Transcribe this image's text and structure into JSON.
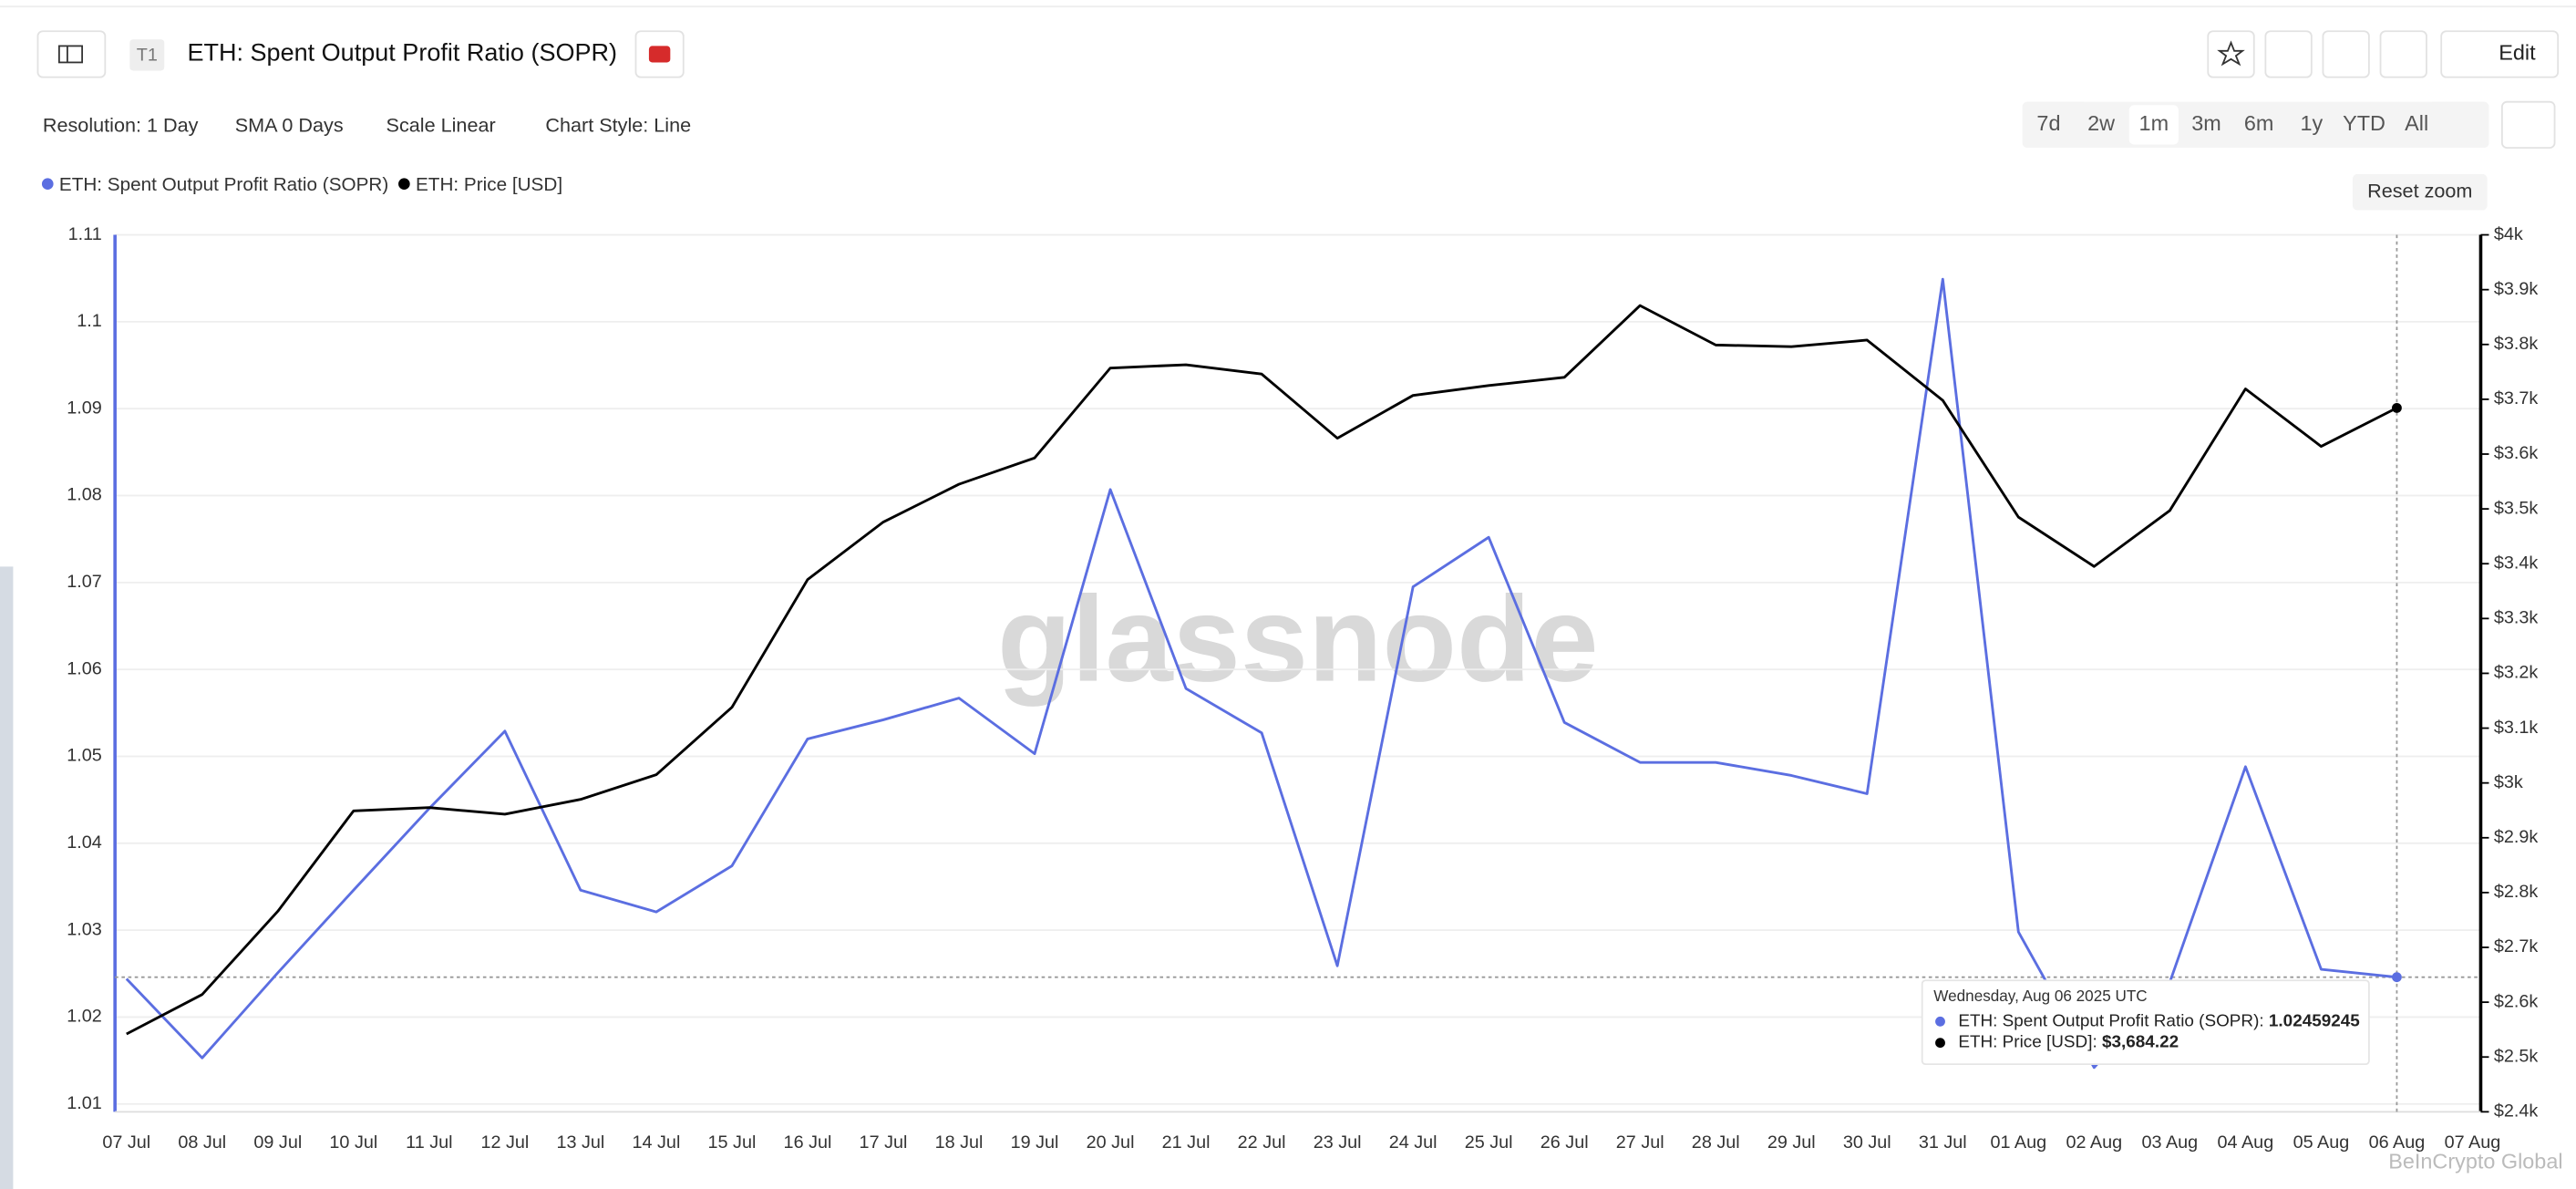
{
  "header": {
    "badge": "T1",
    "title": "ETH: Spent Output Profit Ratio (SOPR)",
    "edit": "Edit"
  },
  "toolbar": {
    "resolution": "Resolution: 1 Day",
    "sma": "SMA 0 Days",
    "scale": "Scale Linear",
    "style": "Chart Style: Line",
    "ranges": [
      "7d",
      "2w",
      "1m",
      "3m",
      "6m",
      "1y",
      "YTD",
      "All"
    ],
    "active_range": "1m",
    "reset": "Reset zoom"
  },
  "tooltip": {
    "date": "Wednesday, Aug 06 2025 UTC",
    "price_label": "$3,684.22"
  },
  "watermark": "glassnode",
  "credit": "BeInCrypto Global",
  "chart_data": {
    "type": "line",
    "title": "ETH: Spent Output Profit Ratio (SOPR)",
    "categories": [
      "07 Jul",
      "08 Jul",
      "09 Jul",
      "10 Jul",
      "11 Jul",
      "12 Jul",
      "13 Jul",
      "14 Jul",
      "15 Jul",
      "16 Jul",
      "17 Jul",
      "18 Jul",
      "19 Jul",
      "20 Jul",
      "21 Jul",
      "22 Jul",
      "23 Jul",
      "24 Jul",
      "25 Jul",
      "26 Jul",
      "27 Jul",
      "28 Jul",
      "29 Jul",
      "30 Jul",
      "31 Jul",
      "01 Aug",
      "02 Aug",
      "03 Aug",
      "04 Aug",
      "05 Aug",
      "06 Aug",
      "07 Aug"
    ],
    "series": [
      {
        "name": "ETH: Spent Output Profit Ratio (SOPR)",
        "color": "#5b6ee1",
        "values": [
          1.0244,
          1.0153,
          1.0251,
          1.0346,
          1.044,
          1.0529,
          1.0346,
          1.0321,
          1.0374,
          1.052,
          1.0542,
          1.0567,
          1.0503,
          1.0807,
          1.0578,
          1.0527,
          1.0259,
          1.0695,
          1.0752,
          1.0539,
          1.0493,
          1.0493,
          1.0478,
          1.0457,
          1.1049,
          1.0298,
          1.0142,
          1.024,
          1.0488,
          1.0255,
          1.02459245,
          null
        ]
      },
      {
        "name": "ETH: Price [USD]",
        "color": "#000000",
        "axis": "y2",
        "values": [
          2542,
          2614,
          2766,
          2949,
          2955,
          2943,
          2970,
          3015,
          3138,
          3371,
          3476,
          3545,
          3593,
          3757,
          3763,
          3746,
          3629,
          3707,
          3725,
          3740,
          3871,
          3799,
          3796,
          3808,
          3698,
          3485,
          3395,
          3497,
          3719,
          3614,
          3684.22,
          null
        ]
      }
    ],
    "ylim": [
      1.0091,
      1.11
    ],
    "yticks": [
      1.01,
      1.02,
      1.03,
      1.04,
      1.05,
      1.06,
      1.07,
      1.08,
      1.09,
      1.1,
      1.11
    ],
    "y2lim": [
      2400,
      4000
    ],
    "y2ticks": [
      {
        "value": 2400,
        "label": "$2.4k"
      },
      {
        "value": 2500,
        "label": "$2.5k"
      },
      {
        "value": 2600,
        "label": "$2.6k"
      },
      {
        "value": 2700,
        "label": "$2.7k"
      },
      {
        "value": 2800,
        "label": "$2.8k"
      },
      {
        "value": 2900,
        "label": "$2.9k"
      },
      {
        "value": 3000,
        "label": "$3k"
      },
      {
        "value": 3100,
        "label": "$3.1k"
      },
      {
        "value": 3200,
        "label": "$3.2k"
      },
      {
        "value": 3300,
        "label": "$3.3k"
      },
      {
        "value": 3400,
        "label": "$3.4k"
      },
      {
        "value": 3500,
        "label": "$3.5k"
      },
      {
        "value": 3600,
        "label": "$3.6k"
      },
      {
        "value": 3700,
        "label": "$3.7k"
      },
      {
        "value": 3800,
        "label": "$3.8k"
      },
      {
        "value": 3900,
        "label": "$3.9k"
      },
      {
        "value": 4000,
        "label": "$4k"
      }
    ],
    "grid": true
  }
}
